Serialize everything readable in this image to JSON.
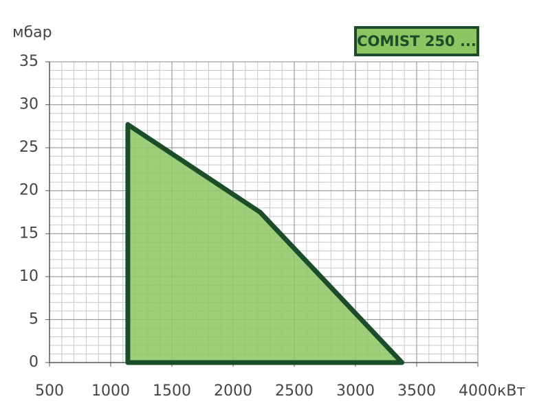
{
  "chart_data": {
    "type": "area",
    "y_label": "мбар",
    "x_label": "кВт",
    "x": [
      1140,
      1140,
      2220,
      3380
    ],
    "series": [
      {
        "name": "COMIST 250 ...",
        "color": "#8dc563",
        "edge_color": "#1b4d2a",
        "values": [
          0,
          27.7,
          17.5,
          0
        ]
      }
    ],
    "xlim": [
      500,
      4000
    ],
    "xticks": [
      500,
      1000,
      1500,
      2000,
      2500,
      3000,
      3500,
      4000
    ],
    "ylim": [
      0,
      35
    ],
    "yticks": [
      0,
      5,
      10,
      15,
      20,
      25,
      30,
      35
    ],
    "grid": true,
    "legend": "top-right"
  }
}
